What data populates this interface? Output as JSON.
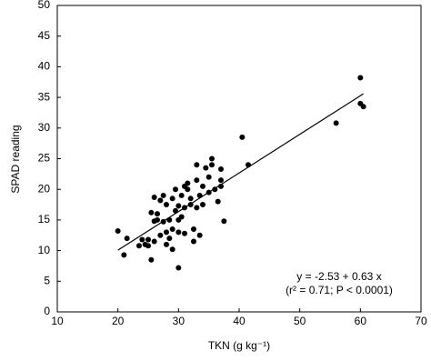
{
  "chart_data": {
    "type": "scatter",
    "x_label": "TKN (g kg⁻¹)",
    "y_label": "SPAD reading",
    "annotations": [
      "y = -2.53 + 0.63 x",
      "(r² = 0.71; P < 0.0001)"
    ],
    "xlim": [
      10,
      70
    ],
    "xticks": [
      10,
      20,
      30,
      40,
      50,
      60,
      70
    ],
    "ylim": [
      0,
      50
    ],
    "yticks": [
      0,
      5,
      10,
      15,
      20,
      25,
      30,
      35,
      40,
      45,
      50
    ],
    "color": "#000000",
    "x": [
      20,
      21,
      21.5,
      23.5,
      24,
      24.5,
      25,
      25,
      25.5,
      25.5,
      26,
      26,
      26,
      26.5,
      26.5,
      27,
      27,
      27.5,
      27.5,
      28,
      28,
      28,
      28.5,
      28.5,
      29,
      29,
      29,
      29.5,
      29.5,
      30,
      30,
      30,
      30,
      30.5,
      30.5,
      31,
      31,
      31,
      31.5,
      31.5,
      32,
      32,
      32.5,
      32.5,
      33,
      33,
      33,
      33.5,
      33.5,
      34,
      34,
      34.5,
      35,
      35,
      35.5,
      35.5,
      36,
      36.5,
      37,
      37,
      37,
      37.5,
      40.5,
      41.5,
      56,
      60,
      60,
      60.5
    ],
    "y": [
      13.2,
      9.3,
      12,
      10.8,
      11.8,
      11,
      11.8,
      10.8,
      16.2,
      8.5,
      11.5,
      14.8,
      18.7,
      16,
      15,
      18.2,
      12.5,
      19,
      14.7,
      17.5,
      11,
      13,
      15,
      12,
      13.5,
      18.5,
      10.2,
      20,
      16.5,
      13,
      15,
      17.3,
      7.2,
      19,
      15.5,
      20.5,
      17,
      12.8,
      21,
      20,
      17.5,
      18.5,
      13.5,
      11.5,
      21.5,
      24,
      17,
      19,
      12.5,
      17.5,
      20.5,
      23.5,
      19.5,
      22,
      25,
      24,
      20,
      18,
      23.3,
      21.5,
      20.5,
      14.8,
      28.5,
      24,
      30.8,
      38.2,
      34,
      33.5
    ],
    "fit_line": {
      "x": [
        20,
        60.5
      ],
      "y": [
        10.07,
        35.585
      ]
    }
  }
}
